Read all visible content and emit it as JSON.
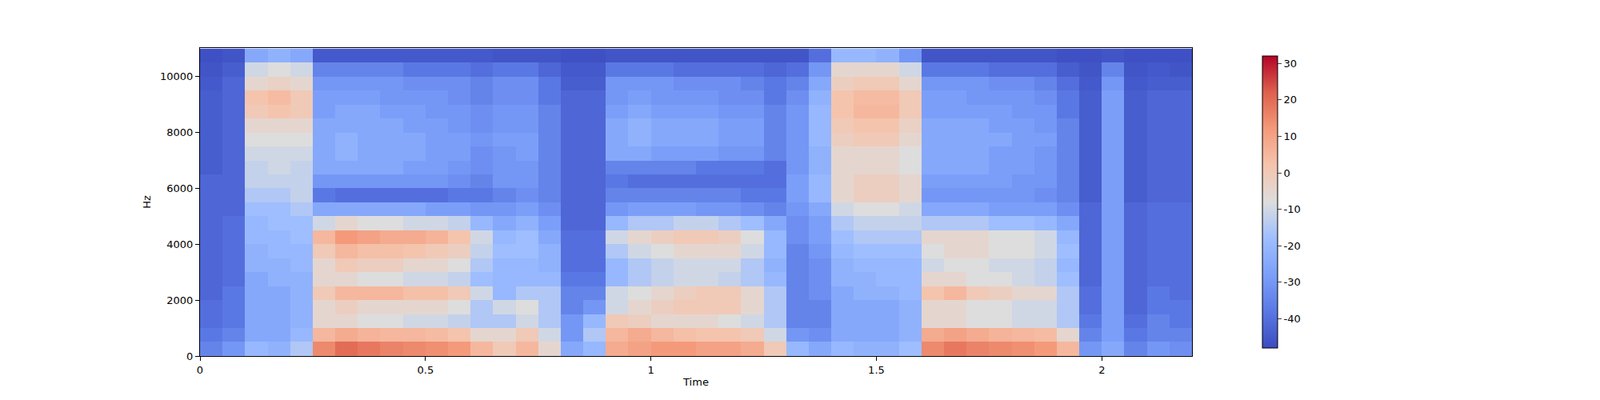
{
  "chart_data": {
    "type": "heatmap",
    "xlabel": "Time",
    "ylabel": "Hz",
    "color": "coolwarm",
    "grid": false,
    "xlim": [
      0,
      2.2
    ],
    "xticks": [
      0,
      0.5,
      1,
      1.5,
      2
    ],
    "ylim": [
      0,
      11025
    ],
    "yticks": [
      0,
      2000,
      4000,
      6000,
      8000,
      10000
    ],
    "zlim": [
      -48,
      32
    ],
    "zticks": [
      -40,
      -30,
      -20,
      -10,
      0,
      10,
      20,
      30
    ],
    "x": [
      0.025,
      0.075,
      0.125,
      0.175,
      0.225,
      0.275,
      0.325,
      0.375,
      0.425,
      0.475,
      0.525,
      0.575,
      0.625,
      0.675,
      0.725,
      0.775,
      0.825,
      0.875,
      0.925,
      0.975,
      1.025,
      1.075,
      1.125,
      1.175,
      1.225,
      1.275,
      1.325,
      1.375,
      1.425,
      1.475,
      1.525,
      1.575,
      1.625,
      1.675,
      1.725,
      1.775,
      1.825,
      1.875,
      1.925,
      1.975,
      2.025,
      2.075,
      2.125,
      2.175
    ],
    "y": [
      250,
      750,
      1250,
      1750,
      2250,
      2750,
      3250,
      3750,
      4250,
      4750,
      5250,
      5750,
      6250,
      6750,
      7250,
      7750,
      8250,
      8750,
      9250,
      9750,
      10250,
      10750
    ],
    "cells": [
      [
        -35,
        -30,
        -20,
        -22,
        -15,
        15,
        20,
        18,
        16,
        15,
        14,
        12,
        5,
        0,
        5,
        -5,
        -25,
        -20,
        8,
        10,
        12,
        12,
        10,
        10,
        8,
        0,
        -20,
        -25,
        -20,
        -22,
        -22,
        -18,
        15,
        18,
        16,
        15,
        14,
        12,
        5,
        -30,
        -25,
        -35,
        -30,
        -32
      ],
      [
        -38,
        -35,
        -25,
        -25,
        -20,
        5,
        8,
        6,
        5,
        5,
        4,
        2,
        -5,
        -5,
        0,
        -10,
        -30,
        -15,
        5,
        8,
        5,
        3,
        2,
        2,
        0,
        -10,
        -30,
        -32,
        -25,
        -25,
        -25,
        -22,
        8,
        10,
        8,
        6,
        5,
        4,
        -5,
        -35,
        -28,
        -38,
        -35,
        -35
      ],
      [
        -40,
        -38,
        -25,
        -25,
        -22,
        -5,
        -5,
        -8,
        -8,
        -10,
        -10,
        -12,
        -15,
        -15,
        -10,
        -15,
        -30,
        -20,
        0,
        -2,
        -5,
        -5,
        -5,
        -8,
        -10,
        -15,
        -35,
        -35,
        -25,
        -25,
        -25,
        -22,
        -5,
        -5,
        -8,
        -8,
        -10,
        -10,
        -15,
        -38,
        -28,
        -40,
        -35,
        -38
      ],
      [
        -40,
        -38,
        -25,
        -25,
        -22,
        -5,
        -2,
        -5,
        -5,
        -5,
        -5,
        -8,
        -15,
        -10,
        -8,
        -15,
        -35,
        -30,
        -10,
        -5,
        -2,
        0,
        0,
        0,
        -5,
        -15,
        -35,
        -35,
        -25,
        -25,
        -25,
        -22,
        -5,
        -5,
        -8,
        -8,
        -10,
        -10,
        -15,
        -40,
        -28,
        -42,
        -38,
        -38
      ],
      [
        -42,
        -38,
        -25,
        -25,
        -22,
        0,
        5,
        5,
        5,
        3,
        3,
        0,
        -10,
        -20,
        -15,
        -15,
        -35,
        -35,
        -10,
        -8,
        -5,
        -2,
        0,
        0,
        -5,
        -15,
        -35,
        -32,
        -25,
        -22,
        -22,
        -20,
        2,
        5,
        0,
        -2,
        -5,
        -5,
        -15,
        -40,
        -28,
        -42,
        -38,
        -40
      ],
      [
        -42,
        -40,
        -25,
        -22,
        -22,
        -5,
        -5,
        -8,
        -8,
        -10,
        -10,
        -12,
        -18,
        -20,
        -20,
        -20,
        -38,
        -38,
        -20,
        -15,
        -12,
        -10,
        -10,
        -12,
        -15,
        -20,
        -35,
        -32,
        -22,
        -22,
        -20,
        -20,
        -5,
        -5,
        -8,
        -8,
        -10,
        -12,
        -18,
        -42,
        -28,
        -42,
        -40,
        -40
      ],
      [
        -42,
        -40,
        -22,
        -22,
        -20,
        -5,
        0,
        -2,
        -2,
        -5,
        -5,
        -8,
        -15,
        -20,
        -20,
        -22,
        -40,
        -40,
        -20,
        -15,
        -12,
        -10,
        -10,
        -10,
        -15,
        -22,
        -35,
        -32,
        -22,
        -20,
        -20,
        -20,
        -10,
        -8,
        -8,
        -10,
        -10,
        -12,
        -20,
        -42,
        -28,
        -42,
        -40,
        -40
      ],
      [
        -42,
        -40,
        -22,
        -20,
        -20,
        0,
        5,
        3,
        3,
        2,
        0,
        -2,
        -12,
        -18,
        -18,
        -22,
        -40,
        -40,
        -15,
        -10,
        -8,
        -5,
        -5,
        -5,
        -10,
        -20,
        -35,
        -30,
        -20,
        -18,
        -18,
        -18,
        -8,
        -5,
        -5,
        -8,
        -8,
        -10,
        -18,
        -42,
        -28,
        -42,
        -40,
        -40
      ],
      [
        -42,
        -40,
        -20,
        -20,
        -18,
        5,
        12,
        10,
        8,
        8,
        6,
        2,
        -10,
        -20,
        -18,
        -25,
        -40,
        -40,
        -10,
        -5,
        -2,
        0,
        0,
        -2,
        -8,
        -20,
        -32,
        -28,
        -18,
        -15,
        -15,
        -15,
        -5,
        -5,
        -5,
        -8,
        -8,
        -10,
        -20,
        -42,
        -28,
        -42,
        -40,
        -40
      ],
      [
        -42,
        -40,
        -20,
        -18,
        -18,
        -10,
        -5,
        -8,
        -8,
        -10,
        -10,
        -12,
        -20,
        -25,
        -22,
        -28,
        -42,
        -42,
        -20,
        -15,
        -15,
        -12,
        -12,
        -15,
        -18,
        -25,
        -32,
        -28,
        -15,
        -12,
        -12,
        -12,
        -15,
        -15,
        -15,
        -18,
        -18,
        -20,
        -25,
        -42,
        -28,
        -42,
        -40,
        -40
      ],
      [
        -42,
        -42,
        -18,
        -18,
        -15,
        -25,
        -25,
        -25,
        -25,
        -25,
        -28,
        -28,
        -30,
        -30,
        -28,
        -32,
        -42,
        -42,
        -30,
        -28,
        -28,
        -28,
        -30,
        -30,
        -32,
        -35,
        -30,
        -25,
        -10,
        -8,
        -8,
        -10,
        -25,
        -25,
        -25,
        -28,
        -28,
        -28,
        -32,
        -42,
        -28,
        -42,
        -40,
        -40
      ],
      [
        -42,
        -42,
        -15,
        -15,
        -12,
        -38,
        -40,
        -40,
        -40,
        -40,
        -40,
        -38,
        -38,
        -35,
        -32,
        -35,
        -42,
        -42,
        -35,
        -35,
        -35,
        -35,
        -35,
        -35,
        -38,
        -38,
        -28,
        -20,
        -5,
        -2,
        -2,
        -5,
        -30,
        -30,
        -30,
        -30,
        -30,
        -32,
        -35,
        -44,
        -28,
        -44,
        -42,
        -42
      ],
      [
        -42,
        -42,
        -12,
        -12,
        -12,
        -30,
        -30,
        -30,
        -30,
        -30,
        -30,
        -32,
        -35,
        -30,
        -30,
        -35,
        -42,
        -42,
        -38,
        -40,
        -40,
        -40,
        -40,
        -40,
        -40,
        -40,
        -28,
        -20,
        -5,
        -2,
        -2,
        -5,
        -28,
        -28,
        -28,
        -28,
        -30,
        -30,
        -35,
        -44,
        -28,
        -44,
        -42,
        -42
      ],
      [
        -44,
        -42,
        -12,
        -10,
        -12,
        -25,
        -25,
        -25,
        -25,
        -28,
        -28,
        -30,
        -32,
        -30,
        -30,
        -35,
        -42,
        -42,
        -35,
        -35,
        -35,
        -35,
        -38,
        -38,
        -38,
        -40,
        -30,
        -22,
        -5,
        -5,
        -5,
        -8,
        -25,
        -25,
        -25,
        -28,
        -28,
        -30,
        -35,
        -44,
        -28,
        -44,
        -42,
        -42
      ],
      [
        -44,
        -42,
        -10,
        -10,
        -10,
        -25,
        -22,
        -25,
        -25,
        -25,
        -28,
        -28,
        -32,
        -30,
        -28,
        -35,
        -42,
        -42,
        -25,
        -25,
        -28,
        -28,
        -28,
        -30,
        -30,
        -35,
        -30,
        -22,
        -5,
        -5,
        -5,
        -8,
        -25,
        -25,
        -25,
        -28,
        -28,
        -30,
        -35,
        -44,
        -28,
        -44,
        -42,
        -42
      ],
      [
        -44,
        -42,
        -8,
        -8,
        -8,
        -25,
        -22,
        -25,
        -25,
        -25,
        -28,
        -28,
        -30,
        -28,
        -28,
        -35,
        -42,
        -42,
        -25,
        -22,
        -25,
        -25,
        -25,
        -28,
        -28,
        -35,
        -30,
        -20,
        -2,
        0,
        0,
        -5,
        -25,
        -25,
        -25,
        -25,
        -28,
        -28,
        -35,
        -44,
        -28,
        -44,
        -42,
        -42
      ],
      [
        -44,
        -42,
        -5,
        -5,
        -5,
        -25,
        -25,
        -25,
        -25,
        -28,
        -28,
        -30,
        -32,
        -30,
        -30,
        -35,
        -42,
        -42,
        -25,
        -22,
        -25,
        -25,
        -25,
        -28,
        -28,
        -35,
        -30,
        -20,
        0,
        2,
        2,
        -3,
        -25,
        -25,
        -25,
        -28,
        -28,
        -30,
        -35,
        -44,
        -28,
        -44,
        -42,
        -42
      ],
      [
        -44,
        -42,
        0,
        2,
        0,
        -28,
        -25,
        -25,
        -28,
        -28,
        -30,
        -30,
        -32,
        -30,
        -30,
        -35,
        -42,
        -42,
        -28,
        -25,
        -28,
        -28,
        -28,
        -30,
        -30,
        -35,
        -30,
        -20,
        2,
        5,
        5,
        0,
        -28,
        -28,
        -28,
        -28,
        -30,
        -30,
        -38,
        -44,
        -28,
        -44,
        -42,
        -42
      ],
      [
        -44,
        -42,
        2,
        4,
        0,
        -28,
        -28,
        -28,
        -30,
        -30,
        -30,
        -32,
        -35,
        -32,
        -32,
        -38,
        -42,
        -42,
        -30,
        -28,
        -30,
        -30,
        -30,
        -32,
        -32,
        -38,
        -32,
        -22,
        2,
        4,
        4,
        0,
        -28,
        -28,
        -30,
        -30,
        -30,
        -32,
        -38,
        -44,
        -28,
        -44,
        -42,
        -42
      ],
      [
        -45,
        -42,
        -5,
        -3,
        -5,
        -30,
        -30,
        -30,
        -30,
        -32,
        -32,
        -32,
        -35,
        -32,
        -32,
        -38,
        -44,
        -44,
        -30,
        -30,
        -30,
        -32,
        -32,
        -32,
        -35,
        -38,
        -35,
        -25,
        -2,
        0,
        0,
        -5,
        -30,
        -30,
        -30,
        -32,
        -32,
        -35,
        -40,
        -45,
        -30,
        -45,
        -44,
        -44
      ],
      [
        -46,
        -44,
        -10,
        -8,
        -10,
        -35,
        -35,
        -35,
        -35,
        -38,
        -38,
        -38,
        -40,
        -38,
        -38,
        -42,
        -45,
        -45,
        -38,
        -38,
        -38,
        -40,
        -40,
        -40,
        -40,
        -42,
        -40,
        -30,
        -5,
        -5,
        -5,
        -10,
        -38,
        -38,
        -38,
        -40,
        -40,
        -40,
        -44,
        -46,
        -35,
        -46,
        -45,
        -46
      ],
      [
        -47,
        -46,
        -25,
        -22,
        -25,
        -45,
        -45,
        -45,
        -45,
        -45,
        -45,
        -45,
        -45,
        -46,
        -46,
        -46,
        -47,
        -47,
        -46,
        -46,
        -46,
        -46,
        -46,
        -46,
        -46,
        -46,
        -46,
        -40,
        -20,
        -20,
        -22,
        -30,
        -46,
        -46,
        -46,
        -46,
        -46,
        -46,
        -47,
        -47,
        -46,
        -47,
        -47,
        -47
      ]
    ]
  }
}
